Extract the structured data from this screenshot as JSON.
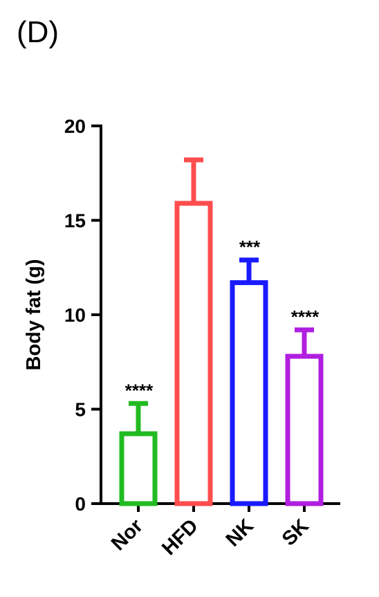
{
  "panel_label": "(D)",
  "chart_data": {
    "type": "bar",
    "categories": [
      "Nor",
      "HFD",
      "NK",
      "SK"
    ],
    "values": [
      3.7,
      15.9,
      11.7,
      7.8
    ],
    "errors": [
      1.6,
      2.3,
      1.2,
      1.4
    ],
    "significance": [
      "****",
      "",
      "***",
      "****"
    ],
    "colors": [
      "#22bb22",
      "#ff4d4d",
      "#1a1aff",
      "#b01ee0"
    ],
    "ylabel": "Body fat (g)",
    "ylim": [
      0,
      20
    ],
    "yticks": [
      0,
      5,
      10,
      15,
      20
    ],
    "grid": false,
    "legend": "none"
  }
}
